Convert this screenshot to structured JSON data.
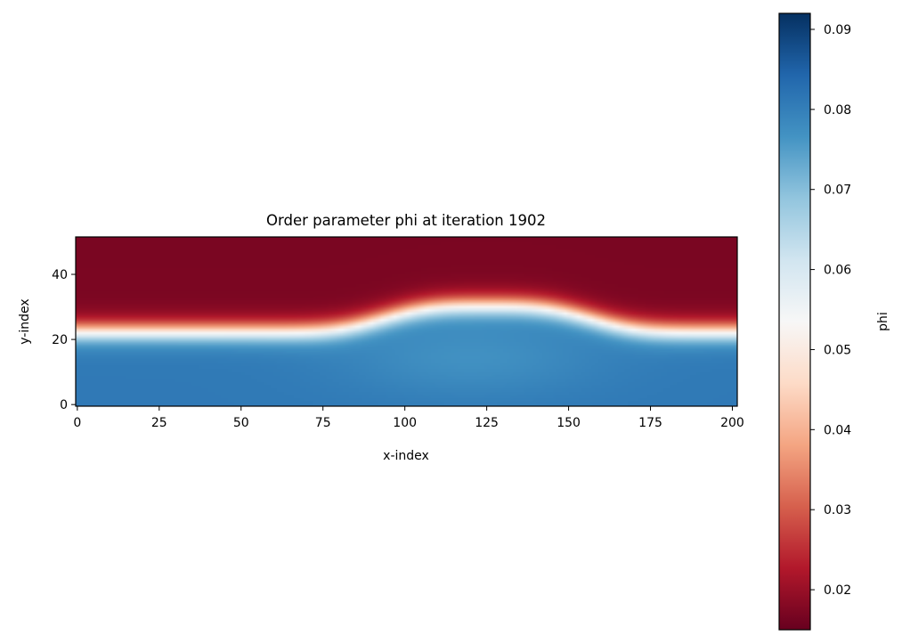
{
  "chart_data": {
    "type": "heatmap",
    "title": "Order parameter phi at iteration 1902",
    "xlabel": "x-index",
    "ylabel": "y-index",
    "xlim": [
      0,
      201
    ],
    "ylim": [
      0,
      52
    ],
    "x_ticks": [
      0,
      25,
      50,
      75,
      100,
      125,
      150,
      175,
      200
    ],
    "y_ticks": [
      0,
      20,
      40
    ],
    "colormap": "RdBu",
    "colorbar": {
      "label": "phi",
      "range": [
        0.015,
        0.092
      ],
      "ticks": [
        0.02,
        0.03,
        0.04,
        0.05,
        0.06,
        0.07,
        0.08,
        0.09
      ],
      "tick_labels": [
        "0.02",
        "0.03",
        "0.04",
        "0.05",
        "0.06",
        "0.07",
        "0.08",
        "0.09"
      ]
    },
    "field": {
      "description_of_values": "phi high (~0.08) in lower region, low (~0.017) in upper region",
      "low_region_value": 0.081,
      "high_region_value": 0.017,
      "interface_y_flat": 23,
      "interface_bump_peak_y": 31,
      "bump_center_x": 125,
      "bump_half_width_x": 36,
      "interface_thickness_y": 5
    }
  }
}
